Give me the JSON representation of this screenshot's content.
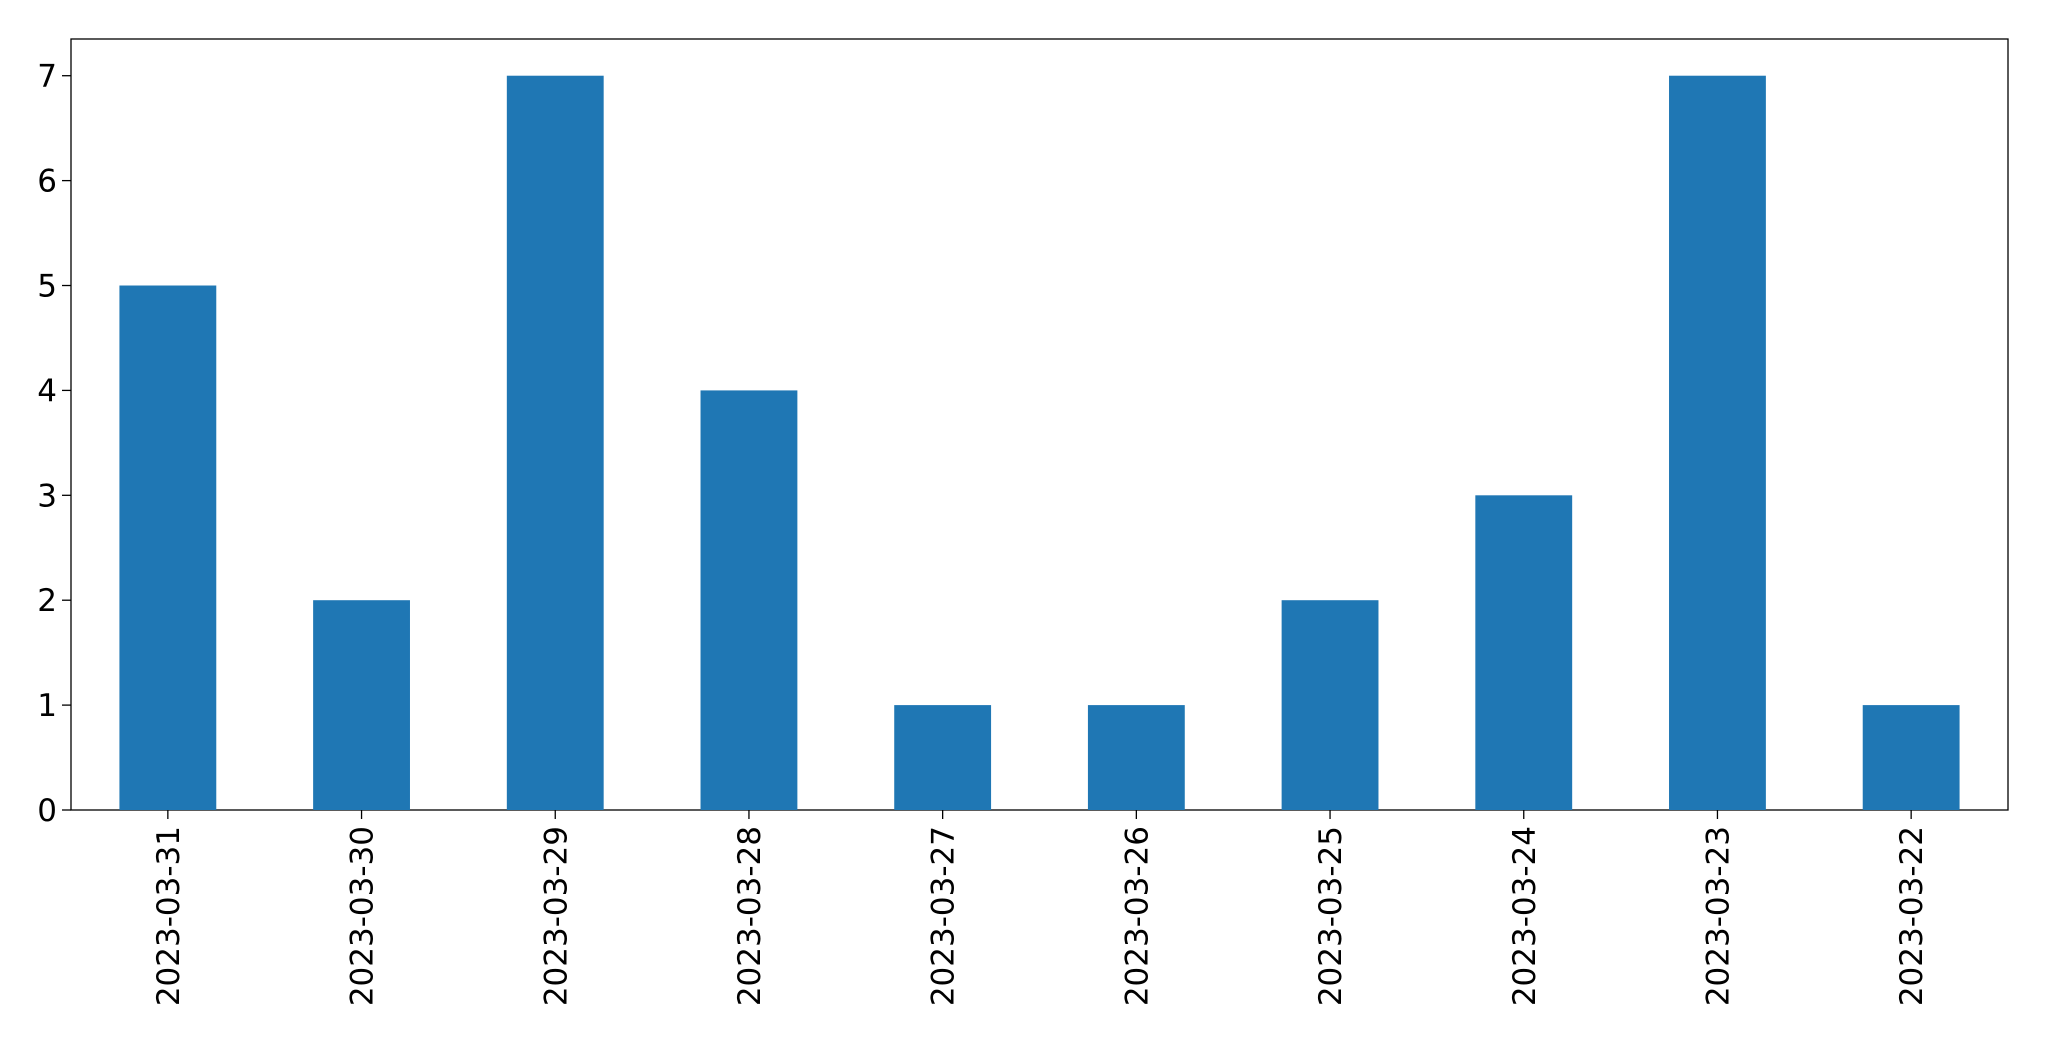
{
  "chart_data": {
    "type": "bar",
    "categories": [
      "2023-03-31",
      "2023-03-30",
      "2023-03-29",
      "2023-03-28",
      "2023-03-27",
      "2023-03-26",
      "2023-03-25",
      "2023-03-24",
      "2023-03-23",
      "2023-03-22"
    ],
    "values": [
      5,
      2,
      7,
      4,
      1,
      1,
      2,
      3,
      7,
      1
    ],
    "color": "#1f77b4",
    "ylim": [
      0,
      7.35
    ],
    "yticks": [
      0,
      1,
      2,
      3,
      4,
      5,
      6,
      7
    ],
    "grid": false
  }
}
